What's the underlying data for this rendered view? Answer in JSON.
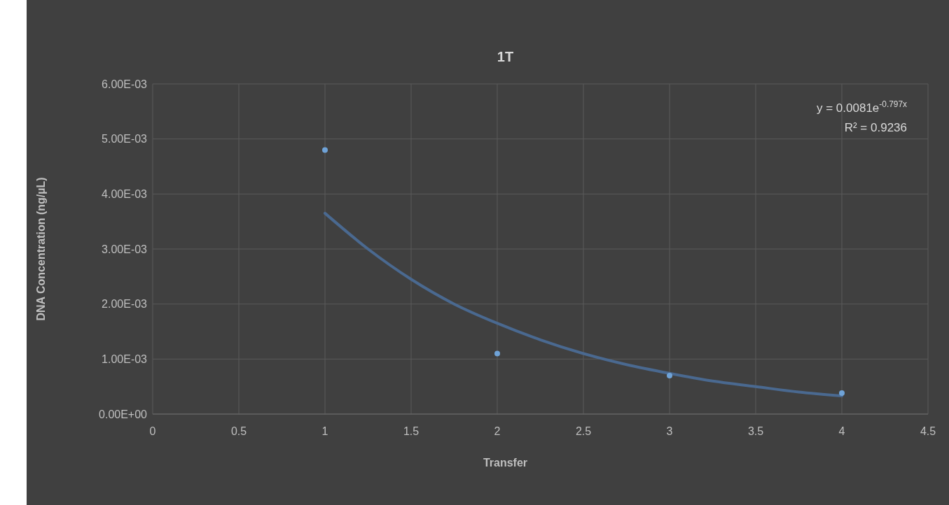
{
  "chart_data": {
    "type": "scatter",
    "title": "1T",
    "xlabel": "Transfer",
    "ylabel": "DNA Concentration (ng/µL)",
    "series": [
      {
        "color": "#6fa3d8",
        "x": [
          1,
          2,
          3,
          4
        ],
        "values": [
          0.0048,
          0.0011,
          0.0007,
          0.00038
        ]
      },
      {
        "type": "line",
        "marker": "none",
        "color": "#4a6990",
        "x": [
          1,
          1.25,
          1.5,
          1.75,
          2,
          2.25,
          2.5,
          2.75,
          3,
          3.25,
          3.5,
          3.75,
          4
        ],
        "values": [
          0.00365,
          0.003,
          0.00245,
          0.002,
          0.00165,
          0.00135,
          0.0011,
          0.0009,
          0.00074,
          0.0006,
          0.0005,
          0.0004,
          0.00033
        ]
      }
    ],
    "xlim": [
      0,
      4.5
    ],
    "xticks": [
      0,
      0.5,
      1,
      1.5,
      2,
      2.5,
      3,
      3.5,
      4,
      4.5
    ],
    "ylim": [
      0,
      0.006
    ],
    "yticks": [
      {
        "value": 0,
        "label": "0.00E+00"
      },
      {
        "value": 0.001,
        "label": "1.00E-03"
      },
      {
        "value": 0.002,
        "label": "2.00E-03"
      },
      {
        "value": 0.003,
        "label": "3.00E-03"
      },
      {
        "value": 0.004,
        "label": "4.00E-03"
      },
      {
        "value": 0.005,
        "label": "5.00E-03"
      },
      {
        "value": 0.006,
        "label": "6.00E-03"
      }
    ],
    "grid": true,
    "marker": "circle",
    "annotations": [
      "y = 0.0081e$^{-0.797x}$",
      "R² = 0.9236"
    ]
  }
}
